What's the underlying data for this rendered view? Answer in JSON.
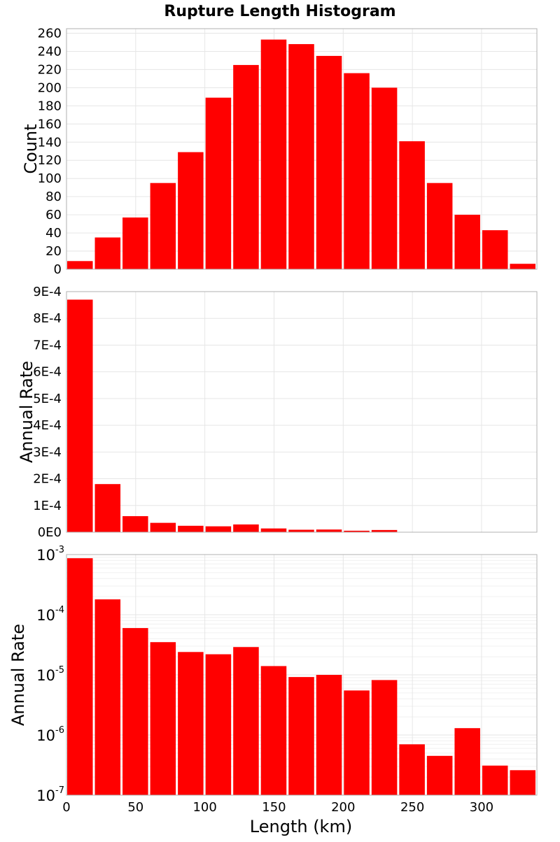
{
  "chart_data": {
    "title": "Rupture Length Histogram",
    "type": "bar",
    "x": {
      "label": "Length (km)",
      "range": [
        0,
        340
      ],
      "ticks": [
        0,
        50,
        100,
        150,
        200,
        250,
        300
      ],
      "bin_width": 20,
      "bin_starts": [
        0,
        20,
        40,
        60,
        80,
        100,
        120,
        140,
        160,
        180,
        200,
        220,
        240,
        260,
        280,
        300,
        320
      ]
    },
    "bar_color": "#ff0000",
    "panels": [
      {
        "ylabel": "Count",
        "scale": "linear",
        "ylim": [
          0,
          265
        ],
        "ticks": [
          0,
          20,
          40,
          60,
          80,
          100,
          120,
          140,
          160,
          180,
          200,
          220,
          240,
          260
        ],
        "tick_labels": [
          "0",
          "20",
          "40",
          "60",
          "80",
          "100",
          "120",
          "140",
          "160",
          "180",
          "200",
          "220",
          "240",
          "260"
        ],
        "values": [
          9,
          35,
          57,
          95,
          129,
          189,
          225,
          253,
          248,
          235,
          216,
          200,
          141,
          95,
          60,
          43,
          6
        ]
      },
      {
        "ylabel": "Annual Rate",
        "scale": "linear",
        "ylim": [
          0,
          0.0009
        ],
        "ticks": [
          0,
          0.0001,
          0.0002,
          0.0003,
          0.0004,
          0.0005,
          0.0006,
          0.0007,
          0.0008,
          0.0009
        ],
        "tick_labels": [
          "0E0",
          "1E-4",
          "2E-4",
          "3E-4",
          "4E-4",
          "5E-4",
          "6E-4",
          "7E-4",
          "8E-4",
          "9E-4"
        ],
        "values": [
          0.00087,
          0.00018,
          6e-05,
          3.5e-05,
          2.4e-05,
          2.2e-05,
          2.9e-05,
          1.4e-05,
          9.2e-06,
          1e-05,
          5.5e-06,
          8.2e-06,
          7e-07,
          4.5e-07,
          1.3e-06,
          3.1e-07,
          2.6e-07
        ]
      },
      {
        "ylabel": "Annual Rate",
        "scale": "log",
        "ylim": [
          1e-07,
          0.001
        ],
        "ticks": [
          1e-07,
          1e-06,
          1e-05,
          0.0001,
          0.001
        ],
        "tick_labels": [
          {
            "base": "10",
            "exp": "-7"
          },
          {
            "base": "10",
            "exp": "-6"
          },
          {
            "base": "10",
            "exp": "-5"
          },
          {
            "base": "10",
            "exp": "-4"
          },
          {
            "base": "10",
            "exp": "-3"
          }
        ],
        "values": [
          0.00087,
          0.00018,
          6e-05,
          3.5e-05,
          2.4e-05,
          2.2e-05,
          2.9e-05,
          1.4e-05,
          9.2e-06,
          1e-05,
          5.5e-06,
          8.2e-06,
          7e-07,
          4.5e-07,
          1.3e-06,
          3.1e-07,
          2.6e-07
        ]
      }
    ]
  }
}
